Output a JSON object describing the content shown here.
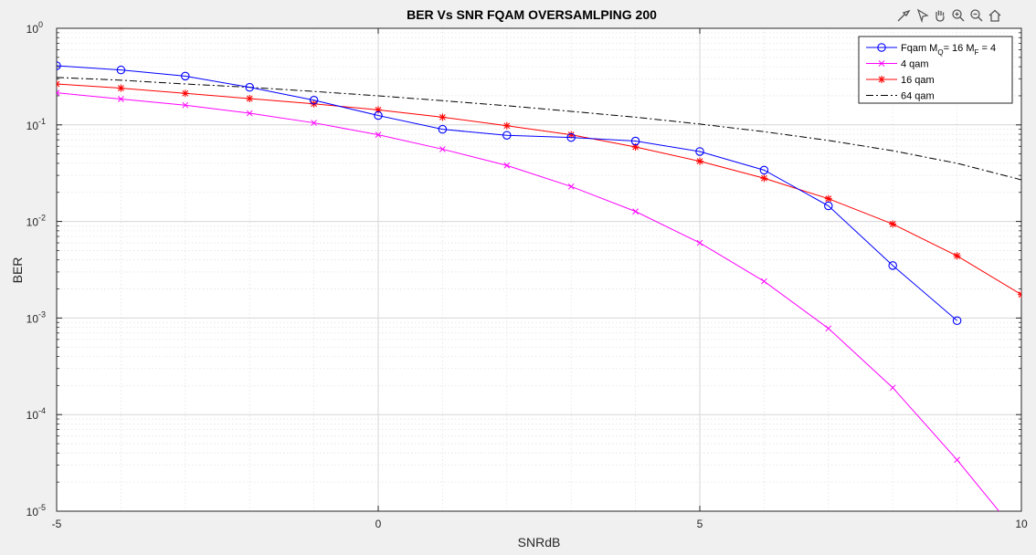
{
  "toolbar": {
    "icons": [
      "brush-icon",
      "data-cursor-icon",
      "pan-hand-icon",
      "zoom-in-icon",
      "zoom-out-icon",
      "home-icon"
    ]
  },
  "chart_data": {
    "type": "line",
    "title": "BER Vs SNR FQAM OVERSAMLPING 200",
    "xlabel": "SNRdB",
    "ylabel": "BER",
    "xlim": [
      -5,
      10
    ],
    "ylim": [
      1e-05,
      1
    ],
    "yscale": "log",
    "grid": true,
    "minor_grid": true,
    "legend_position": "top-right",
    "x_ticks": [
      -5,
      0,
      5,
      10
    ],
    "y_ticks": [
      {
        "base": "10",
        "exp": "0",
        "value": 1
      },
      {
        "base": "10",
        "exp": "-1",
        "value": 0.1
      },
      {
        "base": "10",
        "exp": "-2",
        "value": 0.01
      },
      {
        "base": "10",
        "exp": "-3",
        "value": 0.001
      },
      {
        "base": "10",
        "exp": "-4",
        "value": 0.0001
      },
      {
        "base": "10",
        "exp": "-5",
        "value": 1e-05
      }
    ],
    "series": [
      {
        "name": "Fqam M_Q= 16 M_F = 4",
        "legend": {
          "main": "Fqam M",
          "sub1": "Q",
          "mid": "= 16 M",
          "sub2": "F",
          "end": " = 4"
        },
        "color": "#0000ff",
        "line_style": "solid",
        "marker": "circle",
        "x": [
          -5,
          -4,
          -3,
          -2,
          -1,
          0,
          1,
          2,
          3,
          4,
          5,
          6,
          7,
          8,
          9
        ],
        "y": [
          0.41,
          0.37,
          0.32,
          0.245,
          0.18,
          0.125,
          0.09,
          0.078,
          0.074,
          0.068,
          0.053,
          0.034,
          0.0145,
          0.0035,
          0.00094
        ]
      },
      {
        "name": "4 qam",
        "color": "#ff00ff",
        "line_style": "solid",
        "marker": "x",
        "x": [
          -5,
          -4,
          -3,
          -2,
          -1,
          0,
          1,
          2,
          3,
          4,
          5,
          6,
          7,
          8,
          9,
          10
        ],
        "y": [
          0.215,
          0.185,
          0.16,
          0.132,
          0.105,
          0.079,
          0.056,
          0.038,
          0.023,
          0.0127,
          0.006,
          0.0024,
          0.00078,
          0.00019,
          3.4e-05,
          5.2e-06
        ]
      },
      {
        "name": "16 qam",
        "color": "#ff0000",
        "line_style": "solid",
        "marker": "asterisk",
        "x": [
          -5,
          -4,
          -3,
          -2,
          -1,
          0,
          1,
          2,
          3,
          4,
          5,
          6,
          7,
          8,
          9,
          10
        ],
        "y": [
          0.265,
          0.24,
          0.212,
          0.187,
          0.165,
          0.143,
          0.12,
          0.098,
          0.079,
          0.059,
          0.042,
          0.028,
          0.0172,
          0.0094,
          0.0044,
          0.00175
        ]
      },
      {
        "name": "64 qam",
        "color": "#000000",
        "line_style": "dashdot",
        "marker": "none",
        "x": [
          -5,
          -4,
          -3,
          -2,
          -1,
          0,
          1,
          2,
          3,
          4,
          5,
          6,
          7,
          8,
          9,
          10
        ],
        "y": [
          0.31,
          0.29,
          0.265,
          0.245,
          0.222,
          0.2,
          0.178,
          0.158,
          0.138,
          0.12,
          0.102,
          0.085,
          0.069,
          0.054,
          0.04,
          0.027
        ]
      }
    ]
  }
}
